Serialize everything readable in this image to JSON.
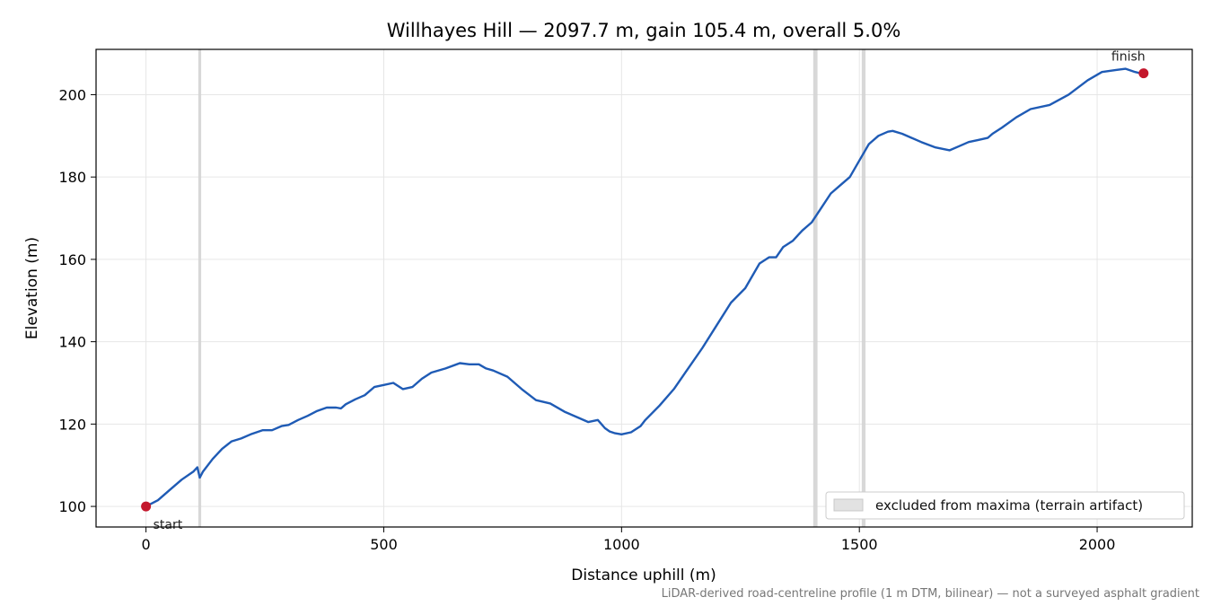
{
  "chart_data": {
    "type": "line",
    "title": "Willhayes Hill — 2097.7 m, gain 105.4 m, overall 5.0%",
    "xlabel": "Distance uphill (m)",
    "ylabel": "Elevation (m)",
    "xlim": [
      -105,
      2200
    ],
    "ylim": [
      95,
      211
    ],
    "xticks": [
      0,
      500,
      1000,
      1500,
      2000
    ],
    "yticks": [
      100,
      120,
      140,
      160,
      180,
      200
    ],
    "grid": true,
    "series": [
      {
        "color": "#1f5bb5",
        "x": [
          0,
          25,
          50,
          75,
          100,
          108,
          113,
          120,
          140,
          160,
          180,
          200,
          220,
          245,
          265,
          285,
          300,
          320,
          340,
          360,
          380,
          400,
          410,
          420,
          440,
          460,
          480,
          500,
          520,
          540,
          560,
          580,
          600,
          630,
          660,
          680,
          700,
          715,
          730,
          760,
          790,
          820,
          850,
          880,
          910,
          930,
          950,
          965,
          975,
          985,
          1000,
          1020,
          1040,
          1050,
          1080,
          1110,
          1140,
          1170,
          1200,
          1230,
          1260,
          1290,
          1310,
          1325,
          1340,
          1360,
          1380,
          1400,
          1420,
          1440,
          1460,
          1480,
          1500,
          1510,
          1520,
          1540,
          1560,
          1570,
          1590,
          1610,
          1630,
          1660,
          1690,
          1710,
          1730,
          1750,
          1770,
          1780,
          1800,
          1830,
          1860,
          1900,
          1940,
          1980,
          2010,
          2040,
          2060,
          2080,
          2097.7
        ],
        "y": [
          100,
          101.5,
          104,
          106.5,
          108.5,
          109.5,
          107,
          108.5,
          111.5,
          114,
          115.8,
          116.5,
          117.5,
          118.5,
          118.5,
          119.5,
          119.8,
          121,
          122,
          123.2,
          124,
          124,
          123.8,
          124.8,
          126,
          127,
          129,
          129.5,
          130,
          128.5,
          129,
          131,
          132.5,
          133.5,
          134.8,
          134.5,
          134.5,
          133.5,
          133,
          131.5,
          128.5,
          125.8,
          125,
          123,
          121.5,
          120.5,
          121,
          119,
          118.2,
          117.8,
          117.5,
          118,
          119.5,
          121,
          124.5,
          128.5,
          133.5,
          138.5,
          144,
          149.5,
          153,
          159,
          160.5,
          160.5,
          163,
          164.5,
          167,
          169,
          172.5,
          176,
          178,
          180,
          184,
          186,
          188,
          190,
          191,
          191.2,
          190.5,
          189.5,
          188.5,
          187.2,
          186.5,
          187.5,
          188.5,
          189,
          189.5,
          190.5,
          192,
          194.5,
          196.5,
          197.5,
          200,
          203.5,
          205.5,
          206,
          206.3,
          205.5,
          205
        ]
      }
    ],
    "excluded_bands": [
      [
        110,
        116
      ],
      [
        1403,
        1412
      ],
      [
        1505,
        1513
      ]
    ],
    "markers": [
      {
        "label": "start",
        "x": 0,
        "y": 100
      },
      {
        "label": "finish",
        "x": 2097.7,
        "y": 205.2
      }
    ],
    "legend": {
      "entries": [
        "excluded from maxima (terrain artifact)"
      ],
      "location": "lower-right"
    },
    "footnote": "LiDAR-derived road-centreline profile (1 m DTM, bilinear) — not a surveyed asphalt gradient",
    "colors": {
      "line": "#1f5bb5",
      "marker": "#c4172c",
      "band": "#d4d4d4"
    }
  }
}
